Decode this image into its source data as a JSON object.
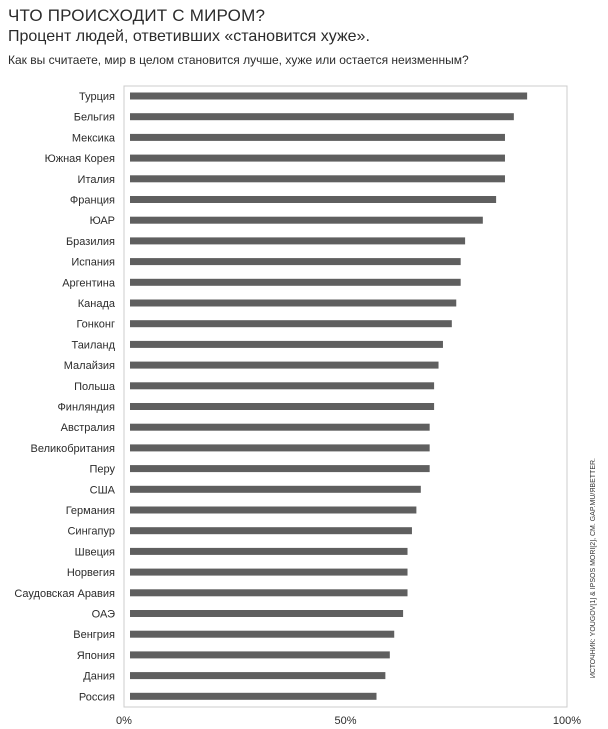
{
  "header": {
    "title": "ЧТО ПРОИСХОДИТ С МИРОМ?",
    "subtitle": "Процент людей, ответивших «становится хуже».",
    "question": "Как вы считаете, мир в целом становится лучше, хуже или остается неизменным?"
  },
  "source": "ИСТОЧНИК: YOUGOV[1] & IPSOS MORI[2], СМ. GAP.MU/ЯBETTER.",
  "colors": {
    "bar": "#5f5f5f",
    "axis": "#cccccc",
    "text": "#2b2b2b"
  },
  "chart_data": {
    "type": "bar",
    "orientation": "horizontal",
    "categories": [
      "Турция",
      "Бельгия",
      "Мексика",
      "Южная Корея",
      "Италия",
      "Франция",
      "ЮАР",
      "Бразилия",
      "Испания",
      "Аргентина",
      "Канада",
      "Гонконг",
      "Таиланд",
      "Малайзия",
      "Польша",
      "Финляндия",
      "Австралия",
      "Великобритания",
      "Перу",
      "США",
      "Германия",
      "Сингапур",
      "Швеция",
      "Норвегия",
      "Саудовская Аравия",
      "ОАЭ",
      "Венгрия",
      "Япония",
      "Дания",
      "Россия"
    ],
    "values": [
      91,
      88,
      86,
      86,
      86,
      84,
      81,
      77,
      76,
      76,
      75,
      74,
      72,
      71,
      70,
      70,
      69,
      69,
      69,
      67,
      66,
      65,
      64,
      64,
      64,
      63,
      61,
      60,
      59,
      57
    ],
    "xlim": [
      0,
      100
    ],
    "xticks": [
      0,
      50,
      100
    ],
    "xtick_labels": [
      "0%",
      "50%",
      "100%"
    ],
    "grid": false
  }
}
